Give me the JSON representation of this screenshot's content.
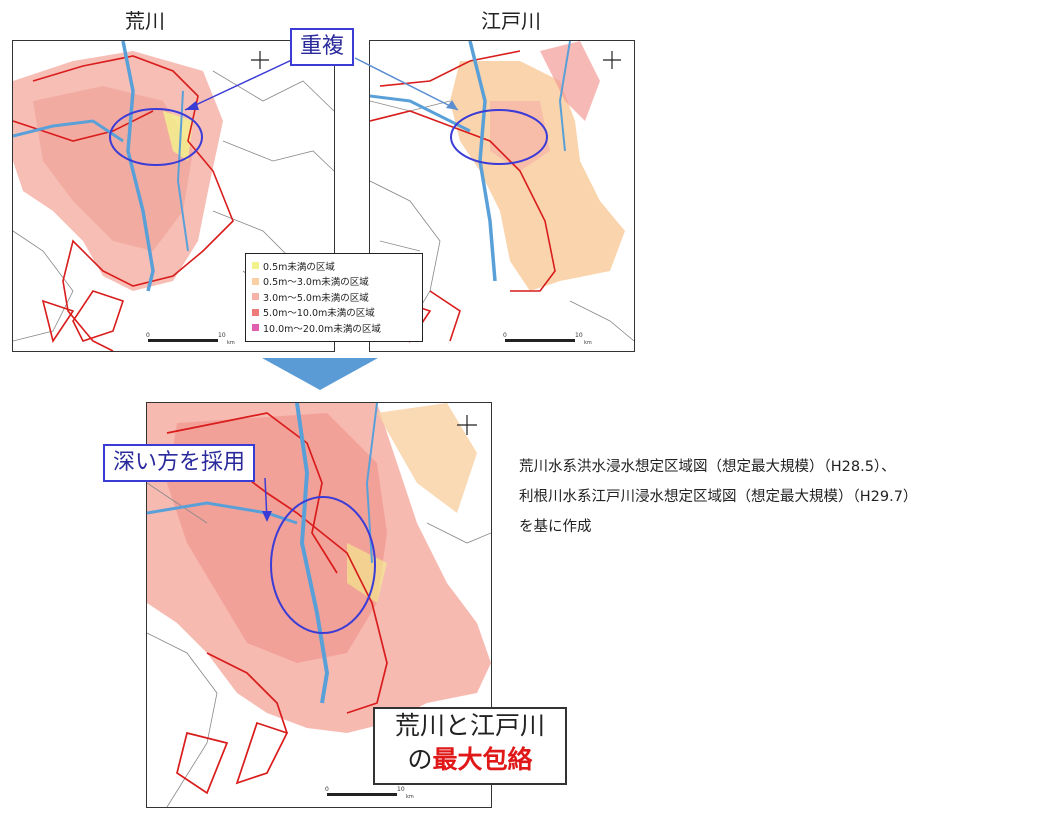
{
  "titles": {
    "left_map": "荒川",
    "right_map": "江戸川"
  },
  "callout_overlap": "重複",
  "callout_deeper": "深い方を採用",
  "envelope_box": {
    "line1": "荒川と江戸川",
    "line2_prefix": "の",
    "line2_emphasis": "最大包絡",
    "emphasis_color": "#e01818"
  },
  "legend": [
    {
      "label": "0.5m未満の区域",
      "color": "#f2f28c"
    },
    {
      "label": "0.5m～3.0m未満の区域",
      "color": "#f9cfa3"
    },
    {
      "label": "3.0m～5.0m未満の区域",
      "color": "#f6b3a8"
    },
    {
      "label": "5.0m～10.0m未満の区域",
      "color": "#ef7a7a"
    },
    {
      "label": "10.0m～20.0m未満の区域",
      "color": "#e25fb0"
    }
  ],
  "scale_labels": {
    "start": "0",
    "end": "10",
    "unit": "km"
  },
  "note_lines": [
    "荒川水系洪水浸水想定区域図（想定最大規模）（H28.5）、",
    "利根川水系江戸川浸水想定区域図（想定最大規模）（H29.7）",
    "を基に作成"
  ],
  "colors": {
    "callout_border": "#3b3bd6",
    "boundary_red": "#d91c1c",
    "river_blue": "#5aa0d8",
    "arrow_blue": "#5b8fd0"
  }
}
